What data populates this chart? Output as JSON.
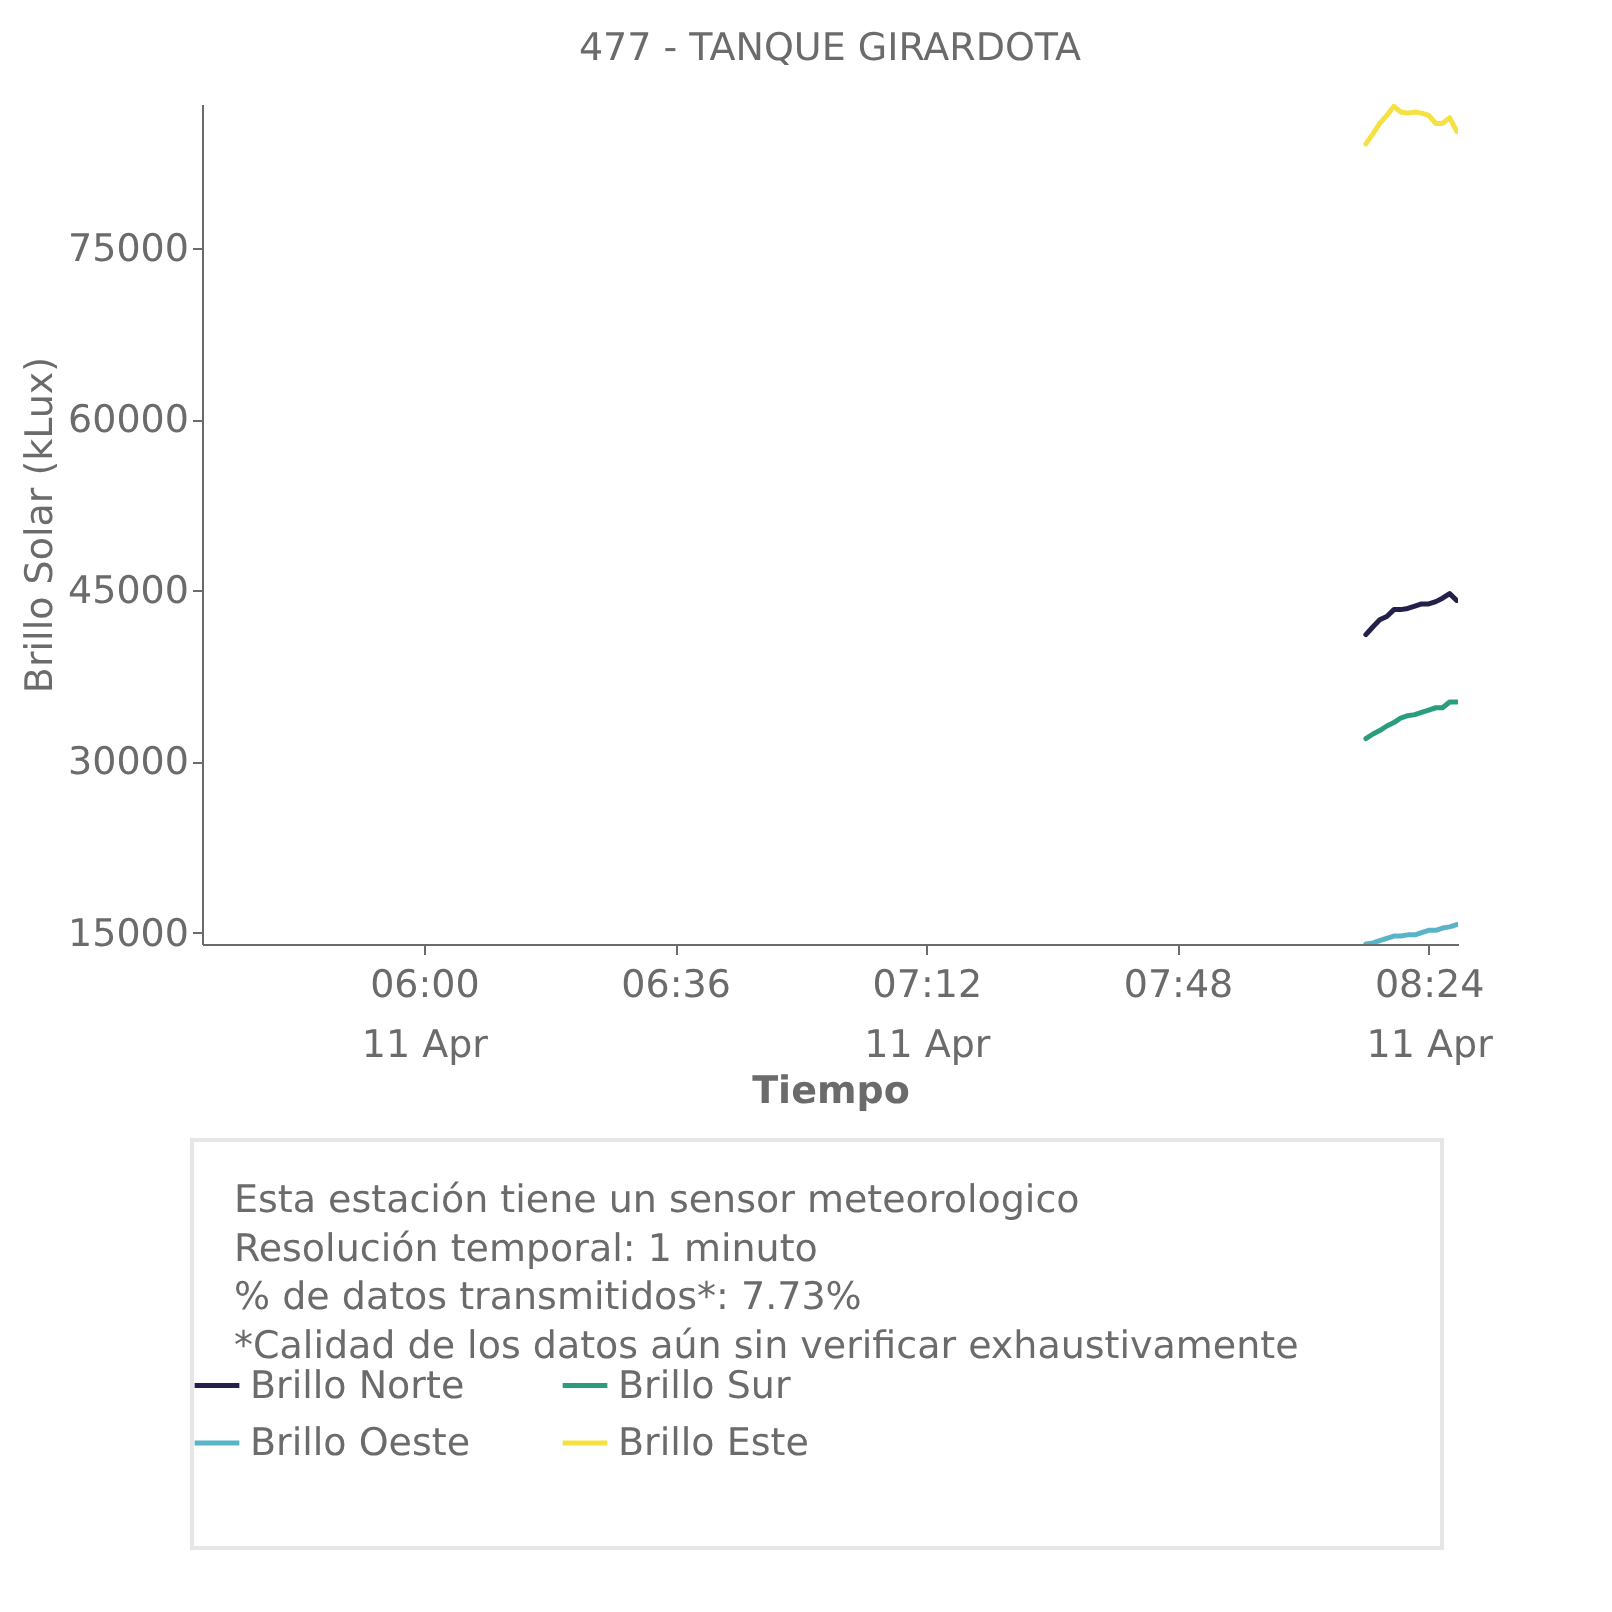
{
  "chart_data": {
    "type": "line",
    "title": "477 - TANQUE GIRARDOTA",
    "xlabel": "Tiempo",
    "ylabel": "Brillo Solar (kLux)",
    "x": [
      8.25,
      8.267,
      8.283,
      8.3,
      8.317,
      8.333,
      8.35,
      8.367,
      8.383,
      8.4,
      8.417,
      8.433,
      8.45,
      8.467
    ],
    "series": [
      {
        "name": "Brillo Norte",
        "color": "#23214a",
        "values": [
          41100,
          41800,
          42400,
          42700,
          43300,
          43300,
          43400,
          43600,
          43800,
          43800,
          44000,
          44300,
          44700,
          44100
        ]
      },
      {
        "name": "Brillo Sur",
        "color": "#2a9d7e",
        "values": [
          32000,
          32400,
          32700,
          33100,
          33400,
          33800,
          34000,
          34100,
          34300,
          34500,
          34700,
          34700,
          35200,
          35200
        ]
      },
      {
        "name": "Brillo Oeste",
        "color": "#5ab4c8",
        "values": [
          14000,
          14100,
          14300,
          14500,
          14700,
          14700,
          14800,
          14800,
          15000,
          15200,
          15200,
          15400,
          15500,
          15700
        ]
      },
      {
        "name": "Brillo Este",
        "color": "#f5e142",
        "values": [
          84100,
          85000,
          85900,
          86600,
          87400,
          86900,
          86800,
          86900,
          86800,
          86600,
          85900,
          85900,
          86400,
          85200
        ]
      }
    ],
    "xlim": [
      5.47,
      8.47
    ],
    "ylim": [
      14000,
      87600
    ],
    "xticks": [
      {
        "value": 6,
        "label": "06:00\n11 Apr"
      },
      {
        "value": 6.6,
        "label": "06:36"
      },
      {
        "value": 7.2,
        "label": "07:12\n11 Apr"
      },
      {
        "value": 7.8,
        "label": "07:48"
      },
      {
        "value": 8.4,
        "label": "08:24\n11 Apr"
      }
    ],
    "yticks": [
      15000,
      30000,
      45000,
      60000,
      75000
    ],
    "grid": false,
    "legend": "bottom",
    "marker": "none",
    "line_style": "solid",
    "annotations": [
      "Esta estación tiene un sensor meteorologico",
      "Resolución temporal: 1 minuto",
      "% de datos transmitidos*: 7.73%",
      "*Calidad de los datos aún sin verificar exhaustivamente"
    ]
  }
}
